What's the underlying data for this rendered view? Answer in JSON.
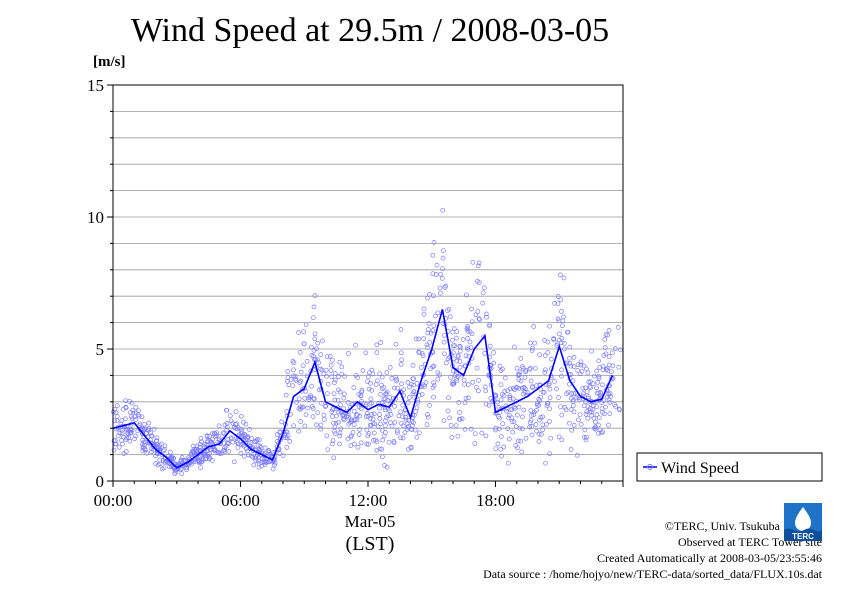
{
  "chart_data": {
    "type": "scatter",
    "title": "Wind Speed at 29.5m / 2008-03-05",
    "ylabel": "[m/s]",
    "xlabel": "(LST)",
    "date_label": "Mar-05",
    "xlim": [
      "00:00",
      "24:00"
    ],
    "ylim": [
      0,
      15
    ],
    "yticks": [
      0,
      5,
      10,
      15
    ],
    "xticks": [
      "00:00",
      "06:00",
      "12:00",
      "18:00"
    ],
    "grid": true,
    "legend": {
      "entries": [
        "Wind Speed"
      ],
      "placement": "right"
    },
    "colors": {
      "points": "#7a7aff",
      "line": "#0000ff"
    },
    "series": [
      {
        "name": "Wind Speed",
        "x_hours": [
          0,
          0.5,
          1,
          1.5,
          2,
          2.5,
          3,
          3.5,
          4,
          4.5,
          5,
          5.5,
          6,
          6.5,
          7,
          7.5,
          8,
          8.5,
          9,
          9.5,
          10,
          10.5,
          11,
          11.5,
          12,
          12.5,
          13,
          13.5,
          14,
          14.5,
          15,
          15.5,
          16,
          16.5,
          17,
          17.5,
          18,
          18.5,
          19,
          19.5,
          20,
          20.5,
          21,
          21.5,
          22,
          22.5,
          23,
          23.5
        ],
        "values": [
          2.0,
          2.1,
          2.2,
          1.7,
          1.2,
          0.9,
          0.5,
          0.7,
          1.0,
          1.3,
          1.4,
          1.9,
          1.6,
          1.2,
          1.0,
          0.8,
          1.8,
          3.2,
          3.5,
          4.5,
          3.0,
          2.8,
          2.6,
          3.0,
          2.7,
          2.9,
          2.8,
          3.4,
          2.4,
          3.8,
          5.0,
          6.5,
          4.3,
          4.0,
          5.0,
          5.5,
          2.6,
          2.8,
          3.0,
          3.2,
          3.5,
          3.8,
          5.1,
          3.8,
          3.2,
          3.0,
          3.1,
          4.0
        ]
      }
    ]
  },
  "legend_label": "Wind Speed",
  "footer": {
    "line1": "©TERC, Univ. Tsukuba",
    "line2": "Observed at TERC Tower site",
    "line3": "Created Automatically at 2008-03-05/23:55:46",
    "line4": "Data source : /home/hojyo/new/TERC-data/sorted_data/FLUX.10s.dat"
  },
  "logo_text": "TERC"
}
